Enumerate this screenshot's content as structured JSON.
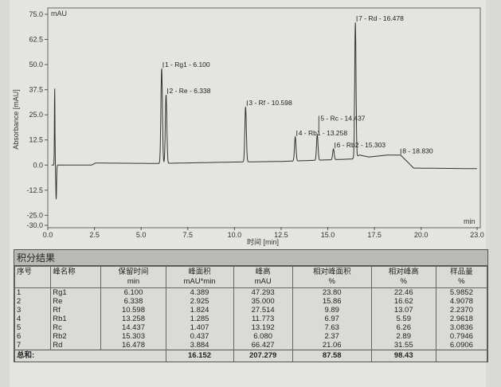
{
  "chart_data": {
    "type": "line",
    "ylabel": "Absorbance [mAU]",
    "yunit": "mAU",
    "xlabel": "时间 [min]",
    "xunit": "min",
    "xlim": [
      0.0,
      23.0
    ],
    "ylim": [
      -30.0,
      75.0
    ],
    "yticks": [
      "75.0",
      "62.5",
      "50.0",
      "37.5",
      "25.0",
      "12.5",
      "0.0",
      "-12.5",
      "-25.0",
      "-30.0"
    ],
    "xticks": [
      "0.0",
      "2.5",
      "5.0",
      "7.5",
      "10.0",
      "12.5",
      "15.0",
      "17.5",
      "20.0",
      "23.0"
    ],
    "grid": false,
    "color": "#333333",
    "solvent_front": {
      "time": 0.4,
      "max": 38,
      "min": -17
    },
    "peaks": [
      {
        "label": "1 - Rg1 - 6.100",
        "time": 6.1,
        "apex": 48
      },
      {
        "label": "2 - Re - 6.338",
        "time": 6.338,
        "apex": 35
      },
      {
        "label": "3 - Rf - 10.598",
        "time": 10.598,
        "apex": 29
      },
      {
        "label": "4 - Rb1 - 13.258",
        "time": 13.258,
        "apex": 14
      },
      {
        "label": "5 - Rc - 14.437",
        "time": 14.437,
        "apex": 15
      },
      {
        "label": "6 - Rb2 - 15.303",
        "time": 15.303,
        "apex": 8
      },
      {
        "label": "7 - Rd - 16.478",
        "time": 16.478,
        "apex": 71
      },
      {
        "label": "8 - 18.830",
        "time": 18.83,
        "apex": 5
      }
    ]
  },
  "table": {
    "title": "积分结果",
    "headers": [
      {
        "name": "序号",
        "unit": ""
      },
      {
        "name": "峰名称",
        "unit": ""
      },
      {
        "name": "保留时间",
        "unit": "min"
      },
      {
        "name": "峰面积",
        "unit": "mAU*min"
      },
      {
        "name": "峰高",
        "unit": "mAU"
      },
      {
        "name": "相对峰面积",
        "unit": "%"
      },
      {
        "name": "相对峰高",
        "unit": "%"
      },
      {
        "name": "样品量",
        "unit": "%"
      }
    ],
    "rows": [
      [
        "1",
        "Rg1",
        "6.100",
        "4.389",
        "47.293",
        "23.80",
        "22.46",
        "5.9852"
      ],
      [
        "2",
        "Re",
        "6.338",
        "2.925",
        "35.000",
        "15.86",
        "16.62",
        "4.9078"
      ],
      [
        "3",
        "Rf",
        "10.598",
        "1.824",
        "27.514",
        "9.89",
        "13.07",
        "2.2370"
      ],
      [
        "4",
        "Rb1",
        "13.258",
        "1.285",
        "11.773",
        "6.97",
        "5.59",
        "2.9618"
      ],
      [
        "5",
        "Rc",
        "14.437",
        "1.407",
        "13.192",
        "7.63",
        "6.26",
        "3.0836"
      ],
      [
        "6",
        "Rb2",
        "15.303",
        "0.437",
        "6.080",
        "2.37",
        "2.89",
        "0.7946"
      ],
      [
        "7",
        "Rd",
        "16.478",
        "3.884",
        "66.427",
        "21.06",
        "31.55",
        "6.0906"
      ]
    ],
    "total": {
      "label": "总和:",
      "area": "16.152",
      "height": "207.279",
      "rel_area": "87.58",
      "rel_height": "98.43"
    }
  }
}
